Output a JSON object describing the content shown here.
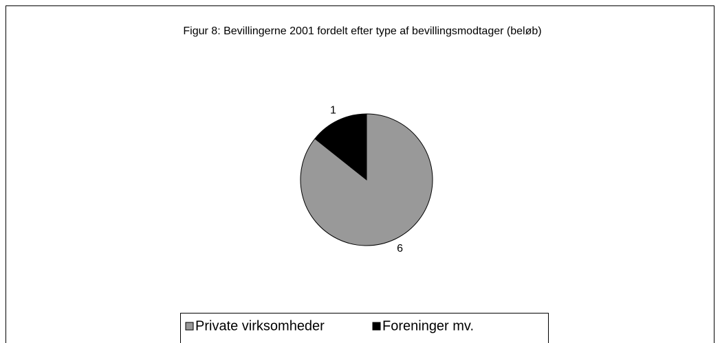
{
  "chart_data": {
    "type": "pie",
    "title": "Figur 8: Bevillingerne 2001 fordelt efter type af bevillingsmodtager (beløb)",
    "categories": [
      "Private virksomheder",
      "Foreninger mv."
    ],
    "values": [
      6,
      1
    ],
    "colors": [
      "#999999",
      "#000000"
    ],
    "legend": "bottom"
  }
}
